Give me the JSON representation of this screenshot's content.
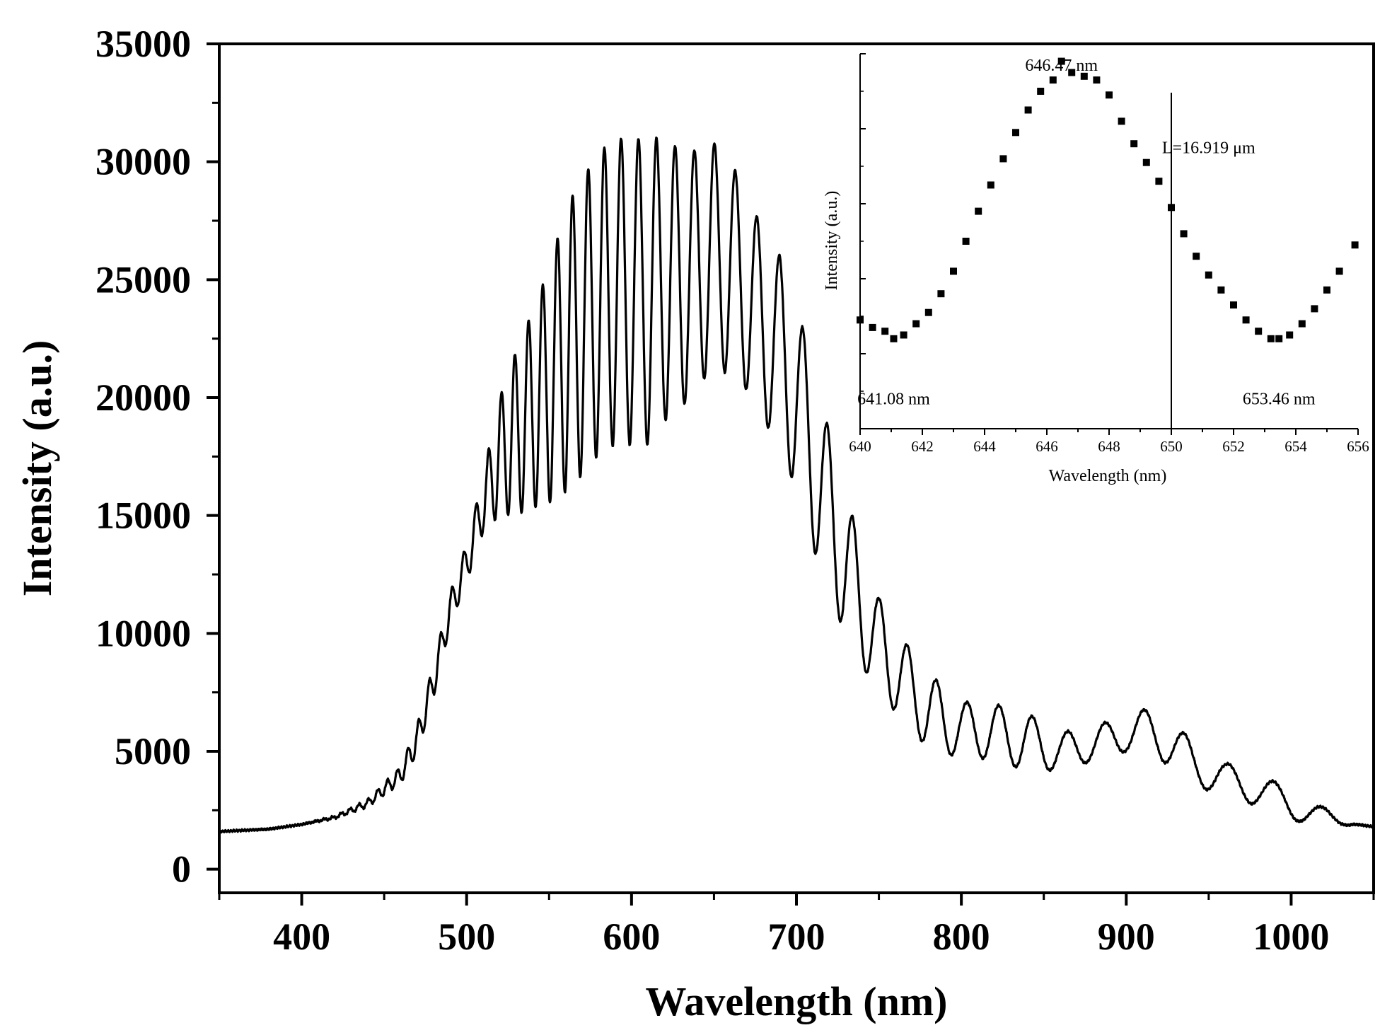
{
  "chart_data": [
    {
      "id": "main",
      "type": "line",
      "title": "",
      "xlabel": "Wavelength (nm)",
      "ylabel": "Intensity (a.u.)",
      "xlim": [
        350,
        1050
      ],
      "ylim": [
        -1000,
        35000
      ],
      "xticks": [
        400,
        500,
        600,
        700,
        800,
        900,
        1000
      ],
      "xtick_labels": [
        "400",
        "500",
        "600",
        "700",
        "800",
        "900",
        "1000"
      ],
      "yticks": [
        0,
        5000,
        10000,
        15000,
        20000,
        25000,
        30000,
        35000
      ],
      "ytick_labels": [
        "0",
        "5000",
        "10000",
        "15000",
        "20000",
        "25000",
        "30000",
        "35000"
      ],
      "grid": false,
      "legend": "none",
      "series": [
        {
          "name": "Intensity",
          "color": "#000000",
          "x": [
            350,
            380,
            400,
            420,
            440,
            460,
            470,
            480,
            490,
            500,
            510,
            520,
            530,
            540,
            550,
            560,
            570,
            580,
            590,
            600,
            610,
            620,
            630,
            640,
            650,
            660,
            670,
            680,
            690,
            700,
            710,
            720,
            730,
            740,
            750,
            760,
            770,
            780,
            790,
            800,
            820,
            840,
            860,
            880,
            900,
            920,
            940,
            960,
            980,
            1000,
            1020,
            1040,
            1050
          ],
          "y": [
            1600,
            1700,
            1900,
            2200,
            2800,
            4000,
            5500,
            8000,
            11000,
            13000,
            15500,
            17500,
            18500,
            19500,
            20500,
            22000,
            23000,
            24000,
            24500,
            24500,
            24500,
            25000,
            25000,
            25500,
            26000,
            25500,
            24500,
            23000,
            22000,
            20000,
            17500,
            15000,
            13000,
            11000,
            9500,
            8500,
            7500,
            6800,
            6200,
            6000,
            5800,
            5400,
            5000,
            5300,
            5800,
            5800,
            4500,
            3800,
            3400,
            2700,
            2200,
            1900,
            1800
          ],
          "modulation_amplitude": [
            0,
            0,
            0,
            50,
            150,
            350,
            600,
            700,
            700,
            800,
            1200,
            2500,
            3500,
            4200,
            5000,
            6000,
            6300,
            6400,
            6500,
            6500,
            6500,
            6000,
            5500,
            5000,
            4800,
            4500,
            4200,
            4000,
            4000,
            4000,
            3800,
            3500,
            3000,
            2400,
            2000,
            1800,
            1700,
            1600,
            1400,
            1100,
            1200,
            1200,
            800,
            700,
            800,
            1100,
            900,
            700,
            700,
            600,
            400,
            0,
            0
          ],
          "fringe_spacing_nm_at_650": 12.38
        }
      ]
    },
    {
      "id": "inset",
      "type": "scatter",
      "title": "",
      "xlabel": "Wavelength (nm)",
      "ylabel": "Intensity (a.u.)",
      "xlim": [
        640,
        656
      ],
      "ylim": [
        0,
        1
      ],
      "xticks": [
        640,
        642,
        644,
        646,
        648,
        650,
        652,
        654,
        656
      ],
      "xtick_labels": [
        "640",
        "642",
        "644",
        "646",
        "648",
        "650",
        "652",
        "654",
        "656"
      ],
      "yticks_unlabeled": [
        0.2,
        0.4,
        0.6,
        0.8,
        1.0
      ],
      "grid": false,
      "legend": "none",
      "vertical_line_x": 650,
      "annotations": [
        {
          "text": "646.47 nm",
          "x": 646.47,
          "y": 0.97
        },
        {
          "text": "L=16.919 μm",
          "x": 651.2,
          "y": 0.75
        },
        {
          "text": "641.08 nm",
          "x": 641.08,
          "y": 0.08
        },
        {
          "text": "653.46 nm",
          "x": 653.46,
          "y": 0.08
        }
      ],
      "series": [
        {
          "name": "Intensity",
          "color": "#000000",
          "marker": "square",
          "x": [
            640.0,
            640.4,
            640.8,
            641.08,
            641.4,
            641.8,
            642.2,
            642.6,
            643.0,
            643.4,
            643.8,
            644.2,
            644.6,
            645.0,
            645.4,
            645.8,
            646.2,
            646.47,
            646.8,
            647.2,
            647.6,
            648.0,
            648.4,
            648.8,
            649.2,
            649.6,
            650.0,
            650.4,
            650.8,
            651.2,
            651.6,
            652.0,
            652.4,
            652.8,
            653.2,
            653.46,
            653.8,
            654.2,
            654.6,
            655.0,
            655.4,
            655.9
          ],
          "y": [
            0.29,
            0.27,
            0.26,
            0.24,
            0.25,
            0.28,
            0.31,
            0.36,
            0.42,
            0.5,
            0.58,
            0.65,
            0.72,
            0.79,
            0.85,
            0.9,
            0.93,
            0.98,
            0.95,
            0.94,
            0.93,
            0.89,
            0.82,
            0.76,
            0.71,
            0.66,
            0.59,
            0.52,
            0.46,
            0.41,
            0.37,
            0.33,
            0.29,
            0.26,
            0.24,
            0.24,
            0.25,
            0.28,
            0.32,
            0.37,
            0.42,
            0.49
          ]
        }
      ]
    }
  ]
}
